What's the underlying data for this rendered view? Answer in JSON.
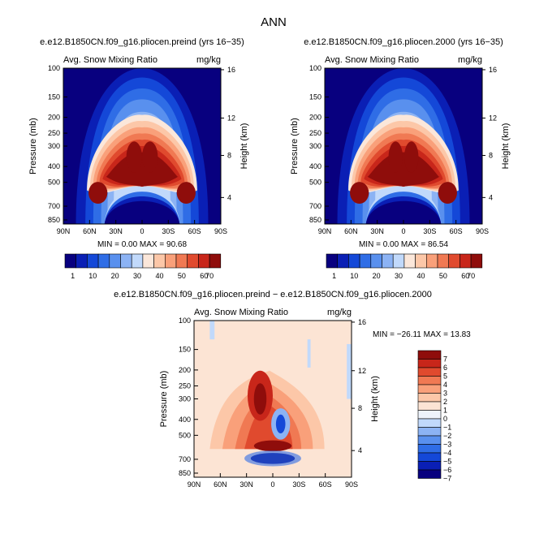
{
  "title": "ANN",
  "colors": {
    "abs_levels": [
      "#08007f",
      "#0a1fb5",
      "#1448d8",
      "#2f6de6",
      "#5990ee",
      "#8cb3f4",
      "#c1d9fb",
      "#fbe7da",
      "#fcc7a8",
      "#f9a07a",
      "#f07953",
      "#e04a2e",
      "#c8261a",
      "#8f0d0b"
    ],
    "diff_levels": [
      "#08007f",
      "#0a1fb5",
      "#1448d8",
      "#2f6de6",
      "#5990ee",
      "#8cb3f4",
      "#c1d9fb",
      "#eef3fb",
      "#fce4d4",
      "#fcc7a8",
      "#f9a07a",
      "#f07953",
      "#e04a2e",
      "#c8261a",
      "#8f0d0b"
    ]
  },
  "panels": [
    {
      "id": "preind",
      "header": "e.e12.B1850CN.f09_g16.pliocen.preind (yrs 16−35)",
      "left_label": "Avg. Snow Mixing Ratio",
      "right_label": "mg/kg",
      "min_max": "MIN =    0.00   MAX =   90.68"
    },
    {
      "id": "y2000",
      "header": "e.e12.B1850CN.f09_g16.pliocen.2000 (yrs 16−35)",
      "left_label": "Avg. Snow Mixing Ratio",
      "right_label": "mg/kg",
      "min_max": "MIN =    0.00   MAX =   86.54"
    },
    {
      "id": "diff",
      "header": "e.e12.B1850CN.f09_g16.pliocen.preind − e.e12.B1850CN.f09_g16.pliocen.2000",
      "left_label": "Avg. Snow Mixing Ratio",
      "right_label": "mg/kg",
      "min_max": "MIN = −26.11   MAX =   13.83"
    }
  ],
  "chart_data": [
    {
      "type": "heatmap",
      "title": "e.e12.B1850CN.f09_g16.pliocen.preind (yrs 16−35)",
      "variable": "Avg. Snow Mixing Ratio",
      "units": "mg/kg",
      "xlabel": "",
      "ylabel": "Pressure (mb)",
      "y2label": "Height (km)",
      "x_ticks": [
        "90N",
        "60N",
        "30N",
        "0",
        "30S",
        "60S",
        "90S"
      ],
      "y_ticks": [
        "100",
        "150",
        "200",
        "250",
        "300",
        "400",
        "500",
        "700",
        "850"
      ],
      "y2_ticks": [
        "16",
        "12",
        "8",
        "4"
      ],
      "ylim": [
        100,
        850
      ],
      "min": 0.0,
      "max": 90.68,
      "colorbar_labels": [
        "1",
        "10",
        "20",
        "30",
        "40",
        "50",
        "60",
        "70"
      ]
    },
    {
      "type": "heatmap",
      "title": "e.e12.B1850CN.f09_g16.pliocen.2000 (yrs 16−35)",
      "variable": "Avg. Snow Mixing Ratio",
      "units": "mg/kg",
      "xlabel": "",
      "ylabel": "Pressure (mb)",
      "y2label": "Height (km)",
      "x_ticks": [
        "90N",
        "60N",
        "30N",
        "0",
        "30S",
        "60S",
        "90S"
      ],
      "y_ticks": [
        "100",
        "150",
        "200",
        "250",
        "300",
        "400",
        "500",
        "700",
        "850"
      ],
      "y2_ticks": [
        "16",
        "12",
        "8",
        "4"
      ],
      "ylim": [
        100,
        850
      ],
      "min": 0.0,
      "max": 86.54,
      "colorbar_labels": [
        "1",
        "10",
        "20",
        "30",
        "40",
        "50",
        "60",
        "70"
      ]
    },
    {
      "type": "heatmap",
      "title": "e.e12.B1850CN.f09_g16.pliocen.preind − e.e12.B1850CN.f09_g16.pliocen.2000",
      "variable": "Avg. Snow Mixing Ratio",
      "units": "mg/kg",
      "xlabel": "",
      "ylabel": "Pressure (mb)",
      "y2label": "Height (km)",
      "x_ticks": [
        "90N",
        "60N",
        "30N",
        "0",
        "30S",
        "60S",
        "90S"
      ],
      "y_ticks": [
        "100",
        "150",
        "200",
        "250",
        "300",
        "400",
        "500",
        "700",
        "850"
      ],
      "y2_ticks": [
        "16",
        "12",
        "8",
        "4"
      ],
      "ylim": [
        100,
        850
      ],
      "min": -26.11,
      "max": 13.83,
      "colorbar_labels": [
        "7",
        "6",
        "5",
        "4",
        "3",
        "2",
        "1",
        "0",
        "−1",
        "−2",
        "−3",
        "−4",
        "−5",
        "−6",
        "−7"
      ]
    }
  ]
}
